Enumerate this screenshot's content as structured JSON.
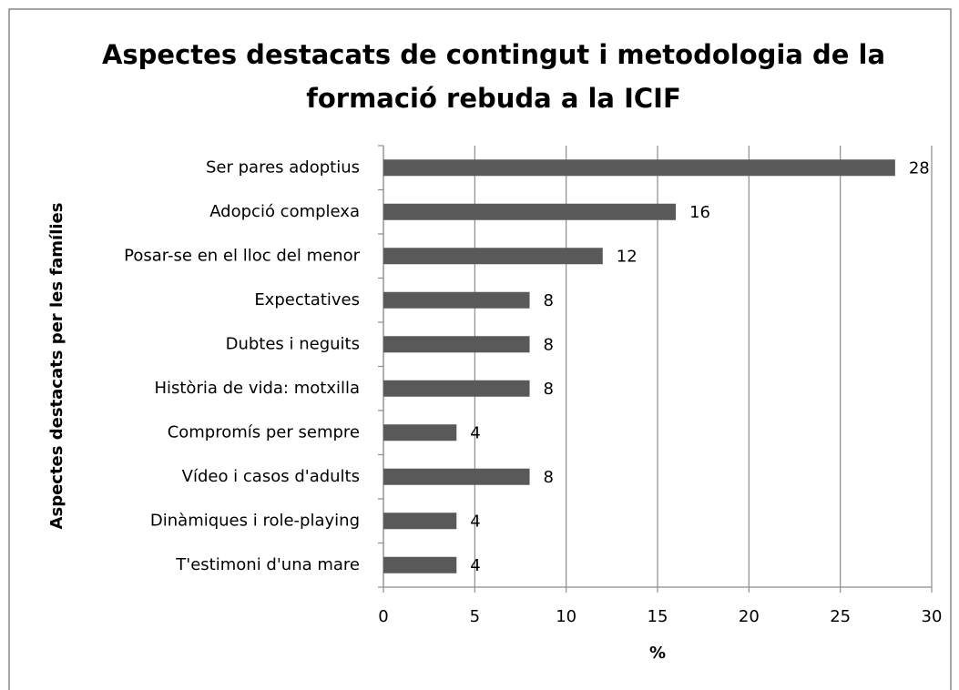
{
  "chart_data": {
    "type": "bar",
    "orientation": "horizontal",
    "title": [
      "Aspectes destacats de contingut i metodologia de la",
      "formació rebuda a la ICIF"
    ],
    "y_label": "Aspectes destacats per les famílies",
    "x_label": "%",
    "categories": [
      "Ser pares adoptius",
      "Adopció complexa",
      "Posar-se en el lloc del menor",
      "Expectatives",
      "Dubtes i neguits",
      "Història de vida: motxilla",
      "Compromís per sempre",
      "Vídeo i casos d'adults",
      "Dinàmiques i role-playing",
      "T'estimoni d'una mare"
    ],
    "values": [
      28,
      16,
      12,
      8,
      8,
      8,
      4,
      8,
      4,
      4
    ],
    "color": "#595959",
    "xlim": [
      0,
      30
    ],
    "xticks": [
      0,
      5,
      10,
      15,
      20,
      25,
      30
    ],
    "grid": true
  }
}
